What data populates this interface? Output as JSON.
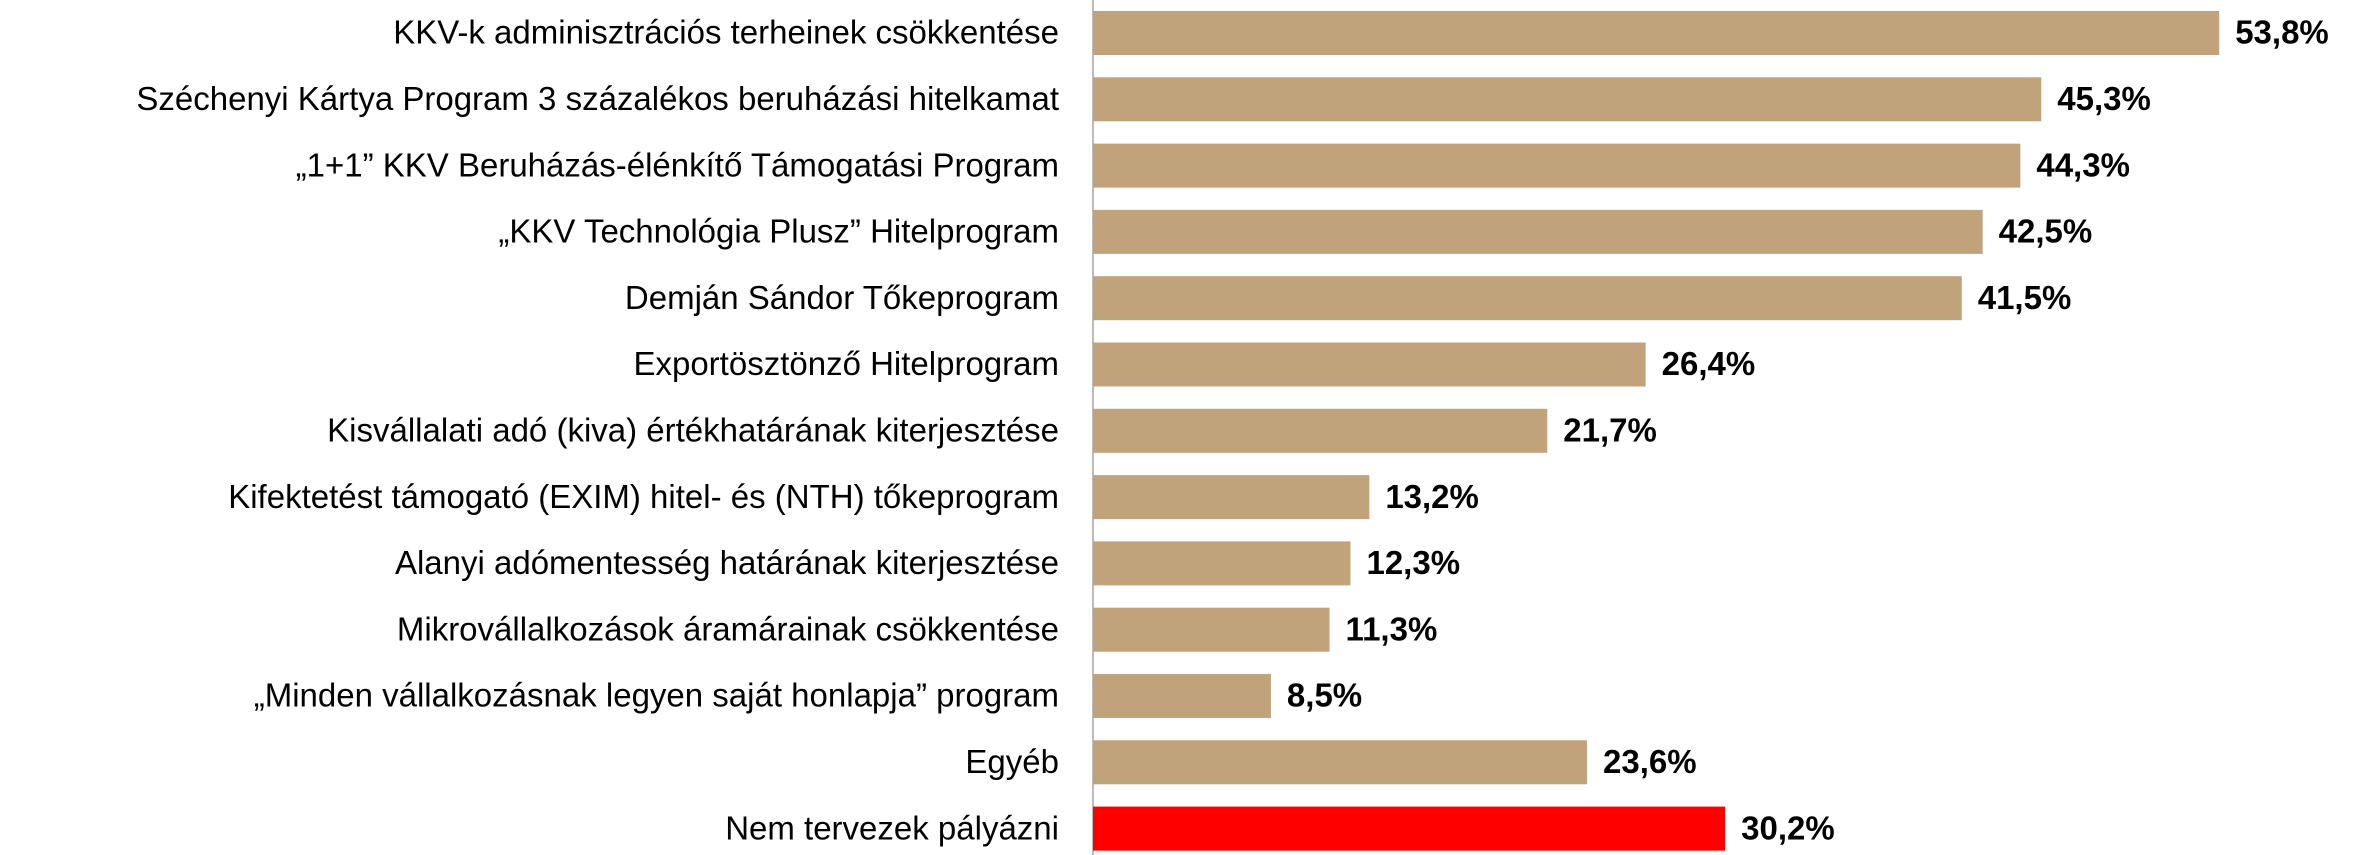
{
  "chart_data": {
    "type": "hbar",
    "categories": [
      "KKV-k adminisztrációs terheinek csökkentése",
      "Széchenyi Kártya Program 3 százalékos beruházási hitelkamat",
      "„1+1” KKV Beruházás-élénkítő Támogatási Program",
      "„KKV Technológia Plusz” Hitelprogram",
      "Demján Sándor Tőkeprogram",
      "Exportösztönző Hitelprogram",
      "Kisvállalati adó (kiva) értékhatárának kiterjesztése",
      "Kifektetést támogató (EXIM) hitel- és (NTH) tőkeprogram",
      "Alanyi adómentesség határának kiterjesztése",
      "Mikrovállalkozások áramárainak csökkentése",
      "„Minden vállalkozásnak legyen saját honlapja” program",
      "Egyéb",
      "Nem tervezek pályázni"
    ],
    "values": [
      53.8,
      45.3,
      44.3,
      42.5,
      41.5,
      26.4,
      21.7,
      13.2,
      12.3,
      11.3,
      8.5,
      23.6,
      30.2
    ],
    "value_labels": [
      "53,8%",
      "45,3%",
      "44,3%",
      "42,5%",
      "41,5%",
      "26,4%",
      "21,7%",
      "13,2%",
      "12,3%",
      "11,3%",
      "8,5%",
      "23,6%",
      "30,2%"
    ],
    "colors": [
      "#c0a27b",
      "#c0a27b",
      "#c0a27b",
      "#c0a27b",
      "#c0a27b",
      "#c0a27b",
      "#c0a27b",
      "#c0a27b",
      "#c0a27b",
      "#c0a27b",
      "#c0a27b",
      "#c0a27b",
      "#ff0000"
    ],
    "xlim": [
      0,
      60
    ]
  }
}
